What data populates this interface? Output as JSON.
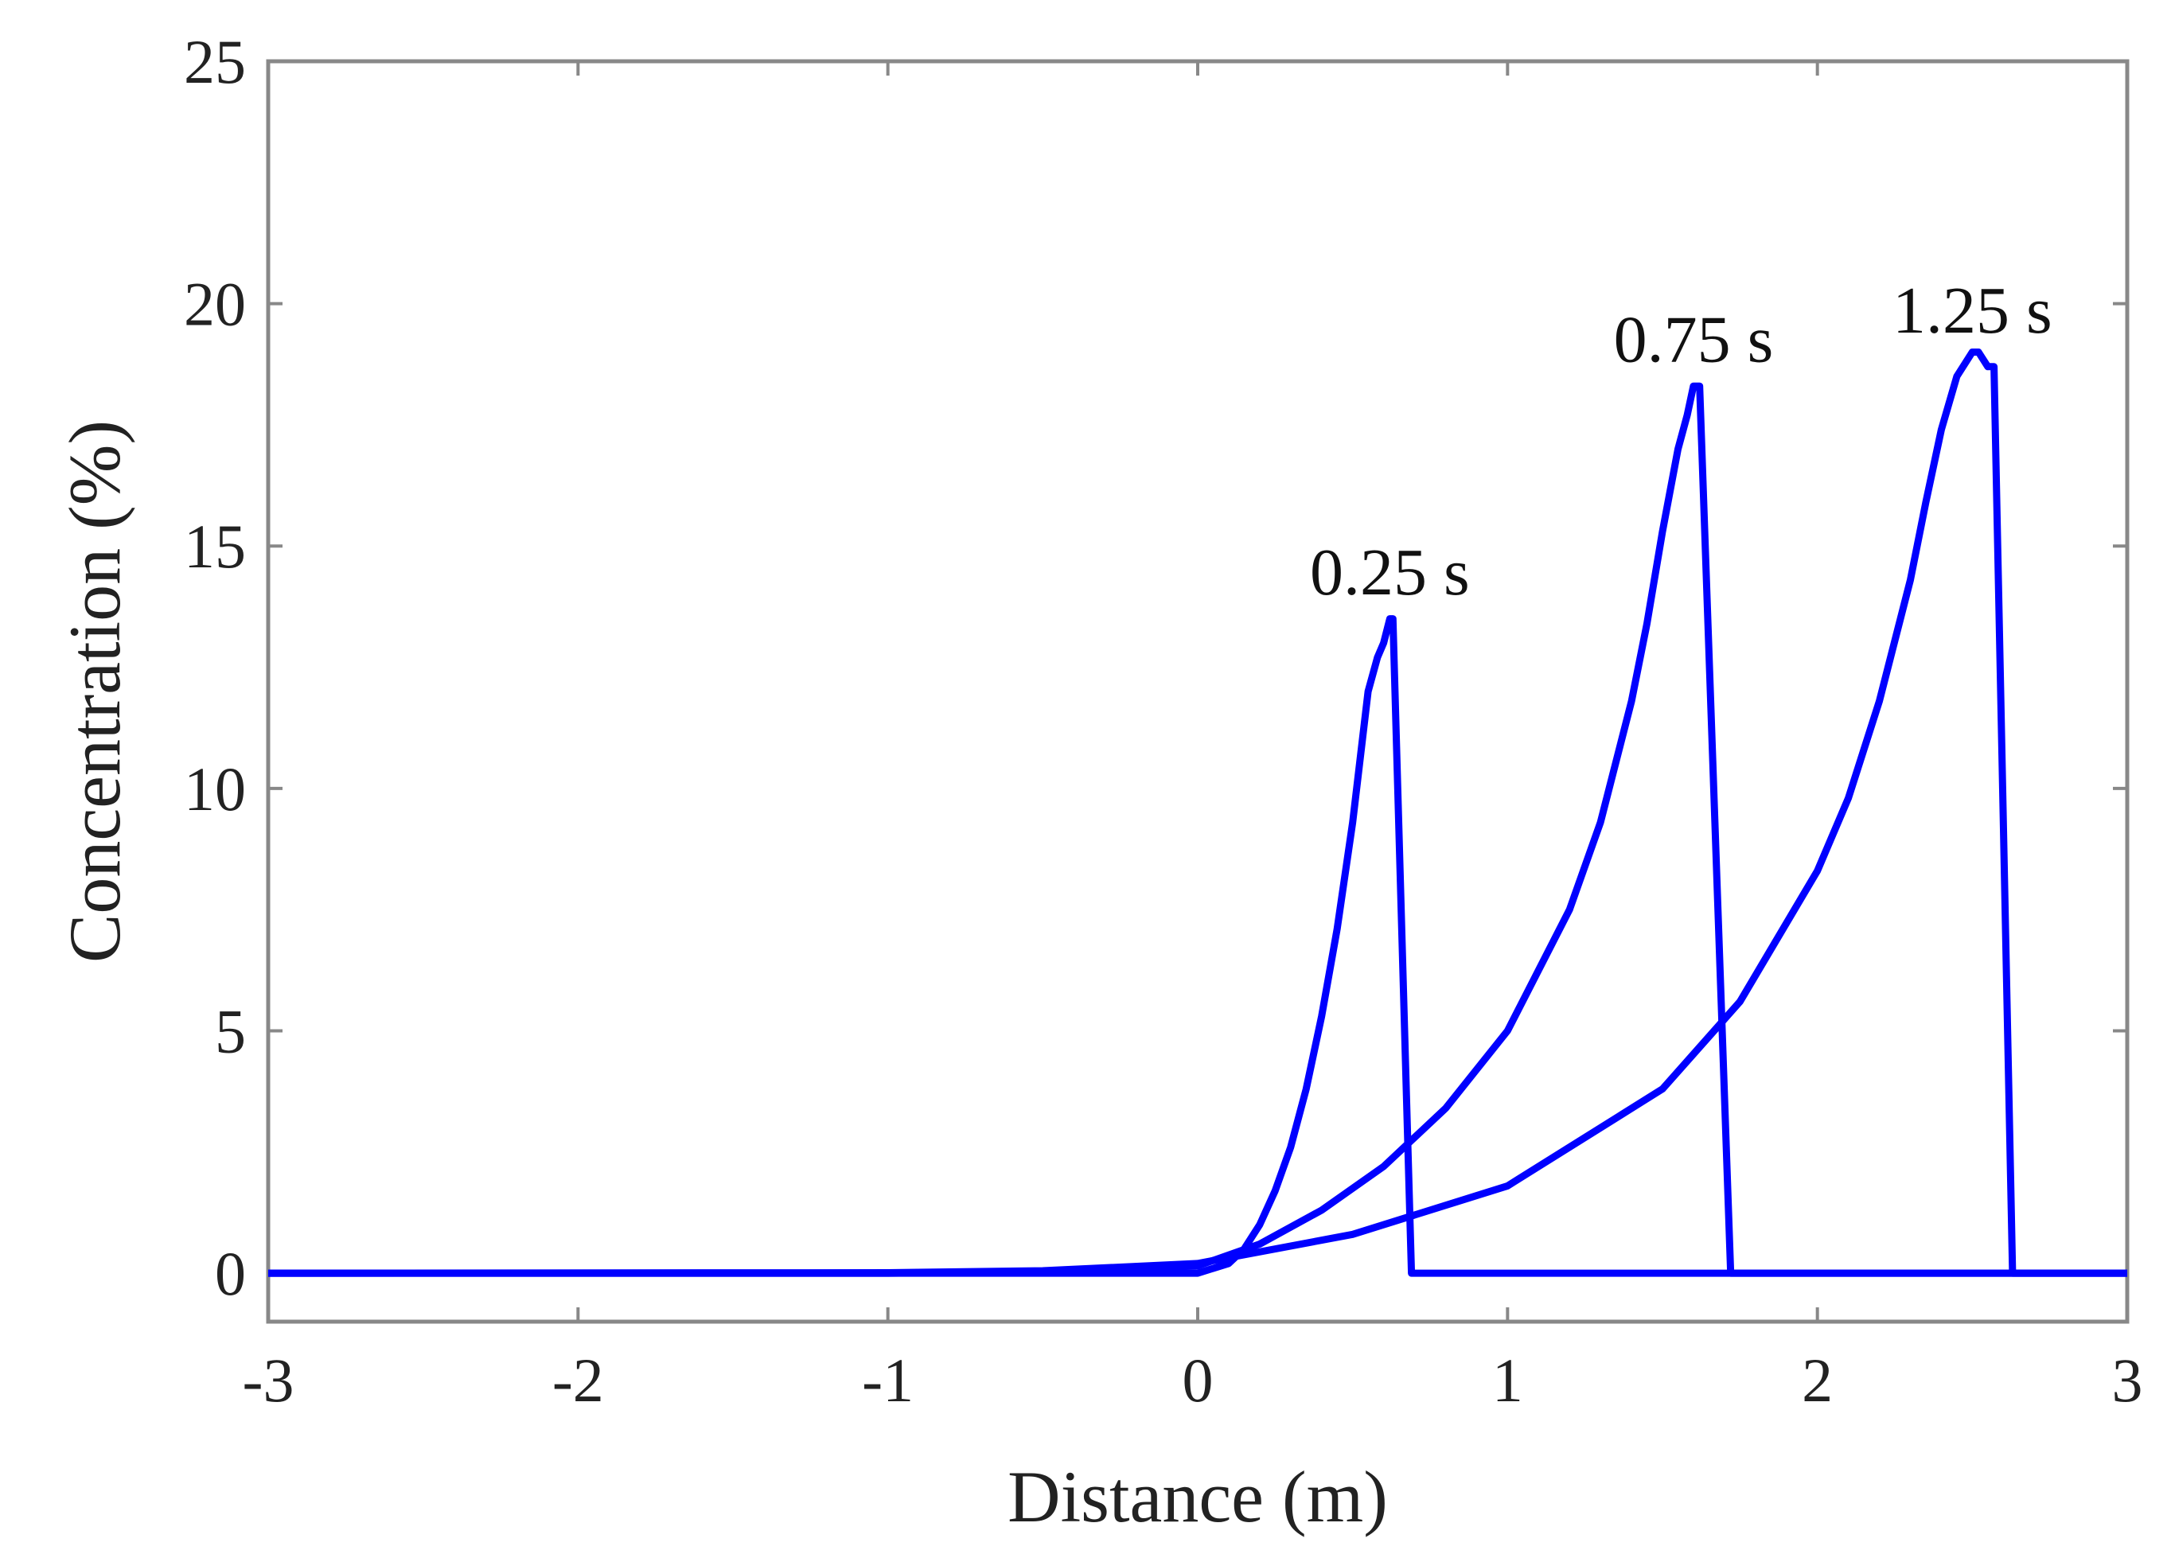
{
  "chart_data": {
    "type": "line",
    "title": "",
    "xlabel": "Distance (m)",
    "ylabel": "Concentration (%)",
    "xlim": [
      -3,
      3
    ],
    "ylim": [
      -1,
      25
    ],
    "xticks": [
      -3,
      -2,
      -1,
      0,
      1,
      2,
      3
    ],
    "xtick_labels": [
      "-3",
      "-2",
      "-1",
      "0",
      "1",
      "2",
      "3"
    ],
    "yticks": [
      0,
      5,
      10,
      15,
      20,
      25
    ],
    "ytick_labels": [
      "0",
      "5",
      "10",
      "15",
      "20",
      "25"
    ],
    "grid": false,
    "line_color": "#0000ff",
    "series": [
      {
        "name": "0.25 s",
        "x": [
          -3,
          -1,
          0,
          0.1,
          0.15,
          0.2,
          0.25,
          0.3,
          0.35,
          0.4,
          0.45,
          0.5,
          0.55,
          0.58,
          0.6,
          0.62,
          0.63,
          0.69,
          2.6,
          3
        ],
        "y": [
          0,
          0,
          0,
          0.2,
          0.5,
          1.0,
          1.7,
          2.6,
          3.8,
          5.3,
          7.1,
          9.3,
          12.0,
          12.7,
          13.0,
          13.5,
          13.5,
          0,
          0,
          0
        ]
      },
      {
        "name": "0.75 s",
        "x": [
          -3,
          -1,
          -0.5,
          0,
          0.2,
          0.4,
          0.6,
          0.8,
          1.0,
          1.2,
          1.3,
          1.4,
          1.45,
          1.5,
          1.55,
          1.58,
          1.6,
          1.62,
          1.72,
          3
        ],
        "y": [
          0,
          0,
          0.02,
          0.15,
          0.6,
          1.3,
          2.2,
          3.4,
          5.0,
          7.5,
          9.3,
          11.8,
          13.4,
          15.3,
          17.0,
          17.7,
          18.3,
          18.3,
          0,
          0
        ]
      },
      {
        "name": "1.25 s",
        "x": [
          -3,
          -1,
          -0.5,
          0,
          0.5,
          1.0,
          1.5,
          1.75,
          2.0,
          2.1,
          2.2,
          2.3,
          2.35,
          2.4,
          2.45,
          2.5,
          2.52,
          2.55,
          2.57,
          2.63,
          3
        ],
        "y": [
          0,
          0.01,
          0.05,
          0.2,
          0.8,
          1.8,
          3.8,
          5.6,
          8.3,
          9.8,
          11.8,
          14.3,
          15.9,
          17.4,
          18.5,
          19.0,
          19.0,
          18.7,
          18.7,
          0,
          0
        ]
      }
    ],
    "annotations": [
      {
        "text": "0.25 s",
        "x": 0.62,
        "y": 14.0
      },
      {
        "text": "0.75 s",
        "x": 1.6,
        "y": 18.8
      },
      {
        "text": "1.25 s",
        "x": 2.5,
        "y": 19.4
      }
    ]
  }
}
